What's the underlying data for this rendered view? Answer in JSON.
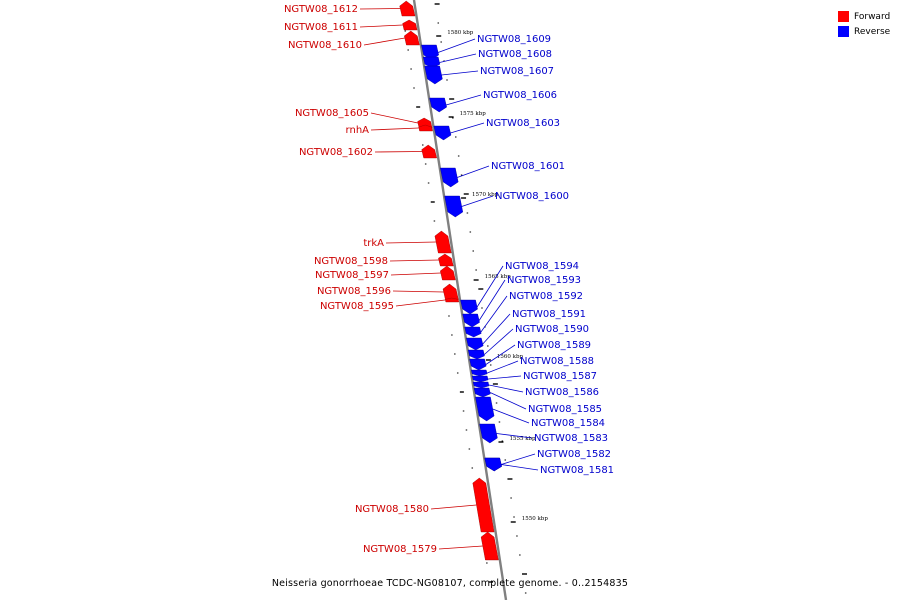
{
  "legend": [
    {
      "label": "Forward",
      "color": "#ff0000"
    },
    {
      "label": "Reverse",
      "color": "#0000ff"
    }
  ],
  "caption": "Neisseria gonorrhoeae TCDC-NG08107, complete genome. - 0..2154835",
  "colors": {
    "forward": "#ff0000",
    "reverse": "#0000ff",
    "backbone": "#808080",
    "label_forward": "#cc0000",
    "label_reverse": "#0000cc"
  },
  "kbp_labels": [
    "1580 kbp",
    "1575 kbp",
    "1570 kbp",
    "1565 kbp",
    "1560 kbp",
    "1555 kbp",
    "1550 kbp"
  ],
  "genes": {
    "forward": [
      "NGTW08_1612",
      "NGTW08_1611",
      "NGTW08_1610",
      "NGTW08_1605",
      "rnhA",
      "NGTW08_1602",
      "trkA",
      "NGTW08_1598",
      "NGTW08_1597",
      "NGTW08_1596",
      "NGTW08_1595",
      "NGTW08_1580",
      "NGTW08_1579"
    ],
    "reverse": [
      "NGTW08_1609",
      "NGTW08_1608",
      "NGTW08_1607",
      "NGTW08_1606",
      "NGTW08_1603",
      "NGTW08_1601",
      "NGTW08_1600",
      "NGTW08_1594",
      "NGTW08_1593",
      "NGTW08_1592",
      "NGTW08_1591",
      "NGTW08_1590",
      "NGTW08_1589",
      "NGTW08_1588",
      "NGTW08_1587",
      "NGTW08_1586",
      "NGTW08_1585",
      "NGTW08_1584",
      "NGTW08_1583",
      "NGTW08_1582",
      "NGTW08_1581"
    ]
  }
}
